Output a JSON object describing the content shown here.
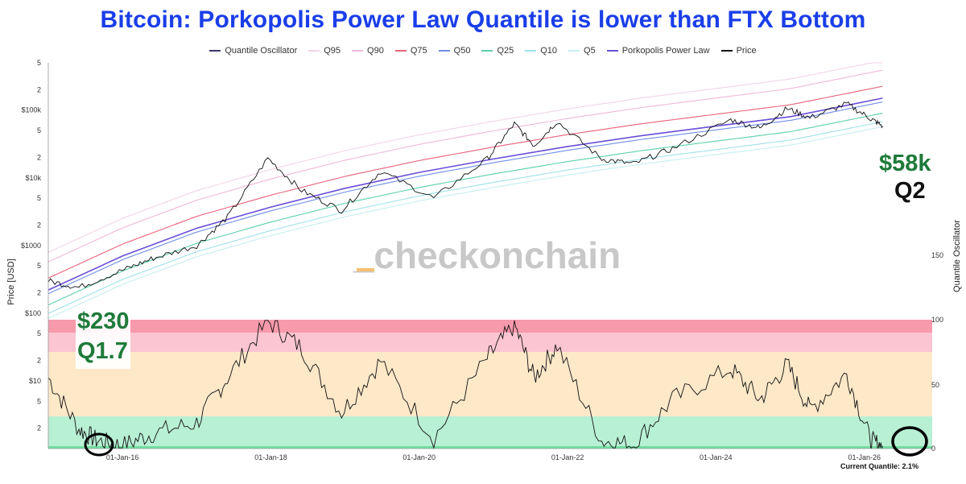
{
  "chart_data": {
    "type": "line",
    "title": "Bitcoin: Porkopolis Power Law Quantile is lower than FTX Bottom",
    "ylabel": "Price [USD]",
    "y2label": "Quantile Oscillator",
    "yscale": "log",
    "y_range": [
      1,
      500000
    ],
    "y2_range": [
      0,
      100
    ],
    "x_range": [
      "2015-01-01",
      "2026-12-01"
    ],
    "x_ticks": [
      "01-Jan-16",
      "01-Jan-18",
      "01-Jan-20",
      "01-Jan-22",
      "01-Jan-24",
      "01-Jan-26"
    ],
    "y_ticks": [
      "2",
      "5",
      "$10",
      "2",
      "5",
      "$100",
      "2",
      "5",
      "$1000",
      "2",
      "5",
      "$10k",
      "2",
      "5",
      "$100k",
      "2",
      "5"
    ],
    "y2_ticks": [
      "0",
      "50",
      "100",
      "150"
    ],
    "legend": [
      {
        "name": "Quantile Oscillator",
        "color": "#3a3a6e"
      },
      {
        "name": "Q95",
        "color": "#f2d4e8"
      },
      {
        "name": "Q90",
        "color": "#f0b8d8"
      },
      {
        "name": "Q75",
        "color": "#e8637a"
      },
      {
        "name": "Q50",
        "color": "#6f8ee6"
      },
      {
        "name": "Q25",
        "color": "#5ccfae"
      },
      {
        "name": "Q10",
        "color": "#9ee2ea"
      },
      {
        "name": "Q5",
        "color": "#c7eef0"
      },
      {
        "name": "Porkopolis Power Law",
        "color": "#6a4fd8"
      },
      {
        "name": "Price",
        "color": "#111111"
      }
    ],
    "quantile_bands": [
      {
        "from": 0,
        "to": 2,
        "color": "#6fe0a0"
      },
      {
        "from": 2,
        "to": 25,
        "color": "#b8f0d4"
      },
      {
        "from": 25,
        "to": 75,
        "color": "#fde8c8"
      },
      {
        "from": 75,
        "to": 90,
        "color": "#fcc5d2"
      },
      {
        "from": 90,
        "to": 100,
        "color": "#f79aac"
      }
    ],
    "price_series": {
      "name": "Price",
      "x": [
        "2015-01-01",
        "2015-06-01",
        "2016-01-01",
        "2016-06-01",
        "2017-01-01",
        "2017-06-01",
        "2017-12-17",
        "2018-06-01",
        "2018-12-15",
        "2019-06-26",
        "2020-03-13",
        "2020-12-01",
        "2021-04-14",
        "2021-07-20",
        "2021-11-10",
        "2022-06-18",
        "2022-11-21",
        "2023-06-01",
        "2024-03-14",
        "2024-08-05",
        "2024-12-17",
        "2025-04-08",
        "2025-10-06",
        "2026-02-01",
        "2026-04-01"
      ],
      "y": [
        300,
        240,
        430,
        650,
        1000,
        2600,
        19500,
        6500,
        3300,
        12500,
        5000,
        19000,
        63000,
        30000,
        68000,
        19000,
        16000,
        27000,
        72000,
        54000,
        106000,
        77000,
        124000,
        75000,
        58000
      ]
    },
    "power_law": {
      "name": "Porkopolis Power Law",
      "x": [
        "2015-01-01",
        "2016-01-01",
        "2017-01-01",
        "2018-01-01",
        "2019-01-01",
        "2020-01-01",
        "2021-01-01",
        "2022-01-01",
        "2023-01-01",
        "2024-01-01",
        "2025-01-01",
        "2026-04-01"
      ],
      "y": [
        220,
        700,
        1800,
        3700,
        7000,
        12000,
        19000,
        29000,
        42000,
        58000,
        80000,
        150000
      ]
    },
    "quantile_oscillator": {
      "name": "Quantile Oscillator",
      "x": [
        "2015-01-01",
        "2015-06-01",
        "2015-09-01",
        "2016-01-01",
        "2016-06-01",
        "2017-01-01",
        "2017-06-01",
        "2017-12-17",
        "2018-06-01",
        "2018-12-15",
        "2019-06-26",
        "2020-03-13",
        "2020-12-01",
        "2021-04-14",
        "2021-07-20",
        "2021-11-10",
        "2022-06-18",
        "2022-11-21",
        "2023-06-01",
        "2024-03-14",
        "2024-08-05",
        "2024-12-17",
        "2025-04-08",
        "2025-10-06",
        "2026-02-01",
        "2026-04-01"
      ],
      "y": [
        55,
        15,
        6,
        2,
        12,
        20,
        55,
        99,
        78,
        28,
        68,
        8,
        70,
        96,
        55,
        80,
        6,
        3,
        38,
        62,
        38,
        65,
        30,
        58,
        6,
        2
      ]
    },
    "annotations": {
      "left_price": "$230",
      "left_quantile": "Q1.7",
      "right_price": "$58k",
      "right_quantile": "Q2",
      "watermark": "_checkonchain",
      "current_quantile": "Current Quantile: 2.1%"
    }
  }
}
